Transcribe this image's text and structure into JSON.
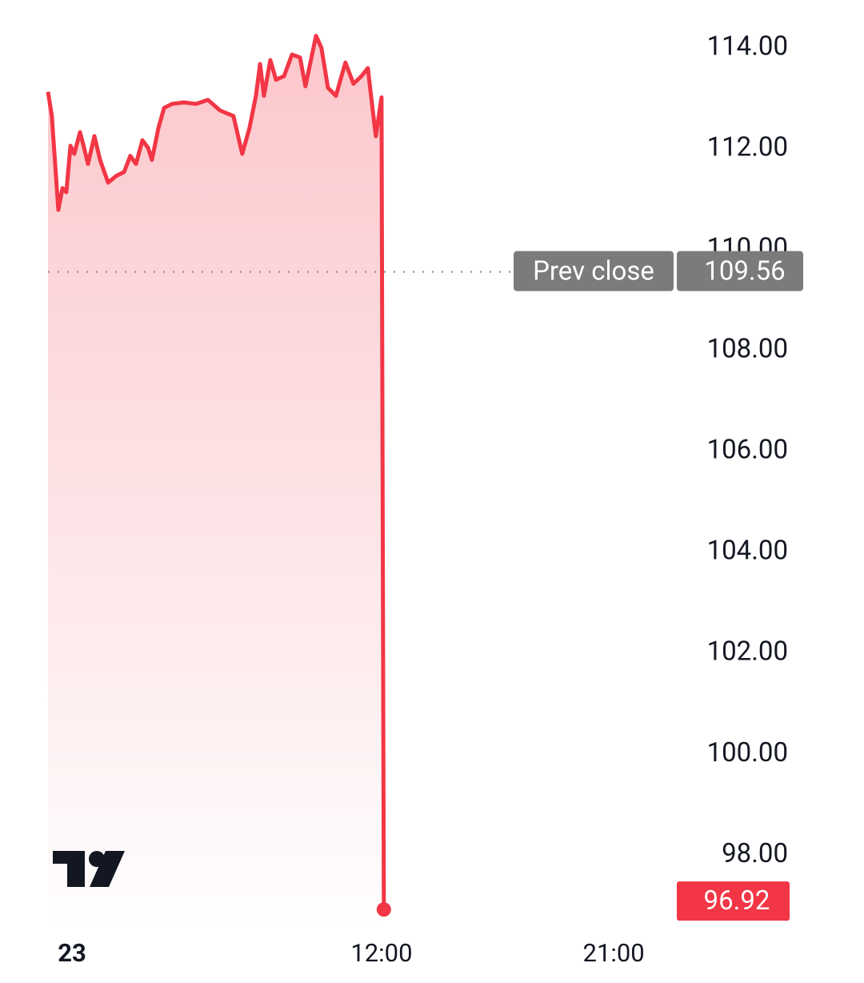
{
  "chart_data": {
    "type": "line",
    "x": [
      -0.93,
      -0.78,
      -0.53,
      -0.37,
      -0.22,
      -0.06,
      0.09,
      0.31,
      0.47,
      0.62,
      0.87,
      1.09,
      1.4,
      1.71,
      2.02,
      2.26,
      2.48,
      2.73,
      2.95,
      3.1,
      3.35,
      3.57,
      3.88,
      4.34,
      4.81,
      5.27,
      5.74,
      6.26,
      6.6,
      6.88,
      7.13,
      7.29,
      7.44,
      7.69,
      7.91,
      8.22,
      8.53,
      8.84,
      9.05,
      9.46,
      9.67,
      9.92,
      10.23,
      10.6,
      10.91,
      11.22,
      11.47,
      11.63,
      11.78,
      12.0,
      12.09
    ],
    "series": [
      {
        "color": "#f23645",
        "values": [
          113.13,
          112.65,
          110.79,
          111.22,
          111.14,
          112.06,
          111.9,
          112.33,
          112.02,
          111.7,
          112.25,
          111.78,
          111.33,
          111.46,
          111.54,
          111.86,
          111.7,
          112.17,
          112.02,
          111.78,
          112.41,
          112.81,
          112.89,
          112.92,
          112.89,
          112.97,
          112.76,
          112.65,
          111.9,
          112.41,
          113.05,
          113.68,
          113.05,
          113.76,
          113.37,
          113.44,
          113.87,
          113.81,
          113.24,
          114.24,
          114.0,
          113.21,
          113.05,
          113.71,
          113.29,
          113.44,
          113.6,
          112.89,
          112.25,
          113.02,
          96.92
        ]
      }
    ],
    "xlim": [
      -0.93,
      23.26
    ],
    "xticks": [
      {
        "value": 0,
        "label": "23"
      },
      {
        "value": 12,
        "label": "12:00"
      },
      {
        "value": 21,
        "label": "21:00"
      }
    ],
    "ylim": [
      96.7,
      114.95
    ],
    "yticks": [
      {
        "value": 98,
        "label": "98.00"
      },
      {
        "value": 100,
        "label": "100.00"
      },
      {
        "value": 102,
        "label": "102.00"
      },
      {
        "value": 104,
        "label": "104.00"
      },
      {
        "value": 106,
        "label": "106.00"
      },
      {
        "value": 108,
        "label": "108.00"
      },
      {
        "value": 110,
        "label": "110.00"
      },
      {
        "value": 112,
        "label": "112.00"
      },
      {
        "value": 114,
        "label": "114.00"
      }
    ],
    "prev_close": {
      "label": "Prev close",
      "value": 109.56
    },
    "grid": false
  }
}
